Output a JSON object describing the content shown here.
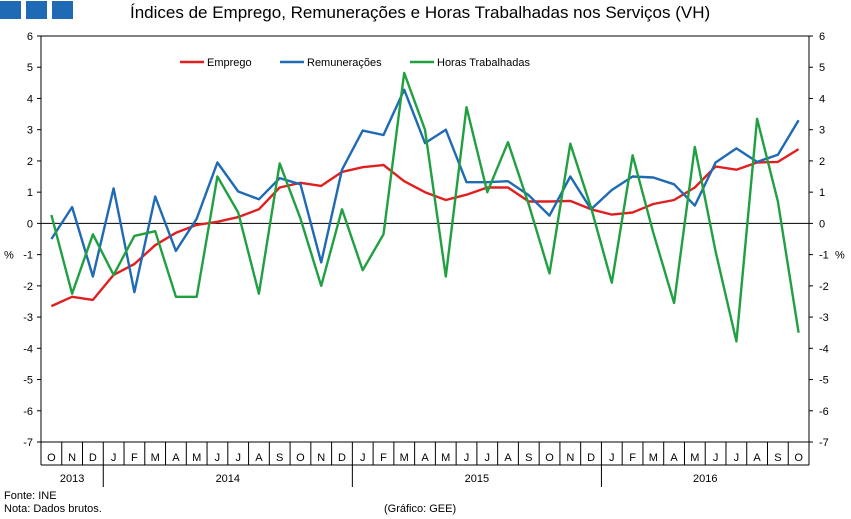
{
  "header": {
    "title": "Índices de Emprego, Remunerações e Horas Trabalhadas nos Serviços (VH)",
    "logo_color": "#1f6ab4"
  },
  "footer": {
    "source": "Fonte: INE",
    "note": "Nota: Dados brutos.",
    "credit": "(Gráfico: GEE)"
  },
  "chart_data": {
    "type": "line",
    "title": "Índices de Emprego, Remunerações e Horas Trabalhadas nos Serviços (VH)",
    "xlabel": "",
    "ylabel": "%",
    "ylabel_right": "%",
    "ylim": [
      -7,
      6
    ],
    "yticks": [
      -7,
      -6,
      -5,
      -4,
      -3,
      -2,
      -1,
      0,
      1,
      2,
      3,
      4,
      5,
      6
    ],
    "grid": false,
    "legend_position": "top",
    "categories": [
      "O",
      "N",
      "D",
      "J",
      "F",
      "M",
      "A",
      "M",
      "J",
      "J",
      "A",
      "S",
      "O",
      "N",
      "D",
      "J",
      "F",
      "M",
      "A",
      "M",
      "J",
      "J",
      "A",
      "S",
      "O",
      "N",
      "D",
      "J",
      "F",
      "M",
      "A",
      "M",
      "J",
      "J",
      "A",
      "S",
      "O"
    ],
    "years": [
      {
        "label": "2013",
        "start": 0,
        "end": 2
      },
      {
        "label": "2014",
        "start": 3,
        "end": 14
      },
      {
        "label": "2015",
        "start": 15,
        "end": 26
      },
      {
        "label": "2016",
        "start": 27,
        "end": 36
      }
    ],
    "series": [
      {
        "name": "Emprego",
        "color": "#e02020",
        "values": [
          -2.65,
          -2.35,
          -2.45,
          -1.65,
          -1.3,
          -0.7,
          -0.3,
          -0.05,
          0.05,
          0.2,
          0.45,
          1.15,
          1.3,
          1.2,
          1.65,
          1.8,
          1.87,
          1.35,
          1.0,
          0.75,
          0.92,
          1.15,
          1.15,
          0.7,
          0.7,
          0.72,
          0.45,
          0.28,
          0.35,
          0.62,
          0.75,
          1.15,
          1.82,
          1.72,
          1.95,
          1.97,
          2.38
        ]
      },
      {
        "name": "Remunerações",
        "color": "#1f6ab4",
        "values": [
          -0.5,
          0.52,
          -1.7,
          1.12,
          -2.2,
          0.86,
          -0.88,
          0.15,
          1.95,
          1.02,
          0.77,
          1.45,
          1.25,
          -1.25,
          1.72,
          2.97,
          2.83,
          4.28,
          2.57,
          3.0,
          1.32,
          1.32,
          1.35,
          0.9,
          0.25,
          1.5,
          0.45,
          1.07,
          1.5,
          1.47,
          1.25,
          0.57,
          1.95,
          2.4,
          1.97,
          2.2,
          3.3
        ]
      },
      {
        "name": "Horas Trabalhadas",
        "color": "#20a040",
        "values": [
          0.27,
          -2.25,
          -0.35,
          -1.65,
          -0.4,
          -0.25,
          -2.35,
          -2.35,
          1.5,
          0.35,
          -2.25,
          1.92,
          0.15,
          -2.0,
          0.45,
          -1.5,
          -0.35,
          4.82,
          3.0,
          -1.7,
          3.72,
          1.0,
          2.6,
          0.6,
          -1.6,
          2.55,
          0.5,
          -1.9,
          2.18,
          -0.3,
          -2.55,
          2.45,
          -0.9,
          -3.78,
          3.35,
          0.7,
          -3.5
        ]
      }
    ]
  }
}
